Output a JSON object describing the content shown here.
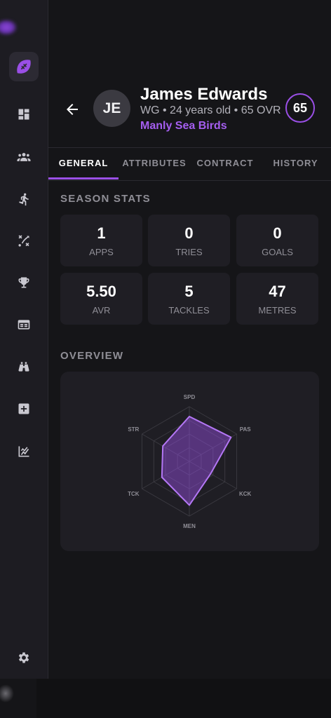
{
  "player": {
    "initials": "JE",
    "name": "James Edwards",
    "meta": "WG • 24 years old • 65 OVR",
    "team": "Manly Sea Birds",
    "rating": "65"
  },
  "tabs": [
    "GENERAL",
    "ATTRIBUTES",
    "CONTRACT",
    "HISTORY"
  ],
  "active_tab": "GENERAL",
  "season_stats": {
    "title": "SEASON STATS",
    "items": [
      {
        "value": "1",
        "label": "APPS"
      },
      {
        "value": "0",
        "label": "TRIES"
      },
      {
        "value": "0",
        "label": "GOALS"
      },
      {
        "value": "5.50",
        "label": "AVR"
      },
      {
        "value": "5",
        "label": "TACKLES"
      },
      {
        "value": "47",
        "label": "METRES"
      }
    ]
  },
  "overview": {
    "title": "OVERVIEW",
    "attributes": [
      {
        "label": "SPD",
        "value": 0.82
      },
      {
        "label": "PAS",
        "value": 0.88
      },
      {
        "label": "KCK",
        "value": 0.45
      },
      {
        "label": "MEN",
        "value": 0.8
      },
      {
        "label": "TCK",
        "value": 0.58
      },
      {
        "label": "STR",
        "value": 0.56
      }
    ]
  },
  "sidebar": {
    "items": [
      "rugby-ball-icon",
      "dashboard-icon",
      "team-icon",
      "training-icon",
      "tactics-icon",
      "trophy-icon",
      "fixtures-icon",
      "scouting-icon",
      "medical-icon",
      "stats-icon"
    ],
    "settings": "gear-icon"
  },
  "colors": {
    "accent": "#9a4fe6",
    "background": "#151518",
    "card": "#1f1e24"
  }
}
